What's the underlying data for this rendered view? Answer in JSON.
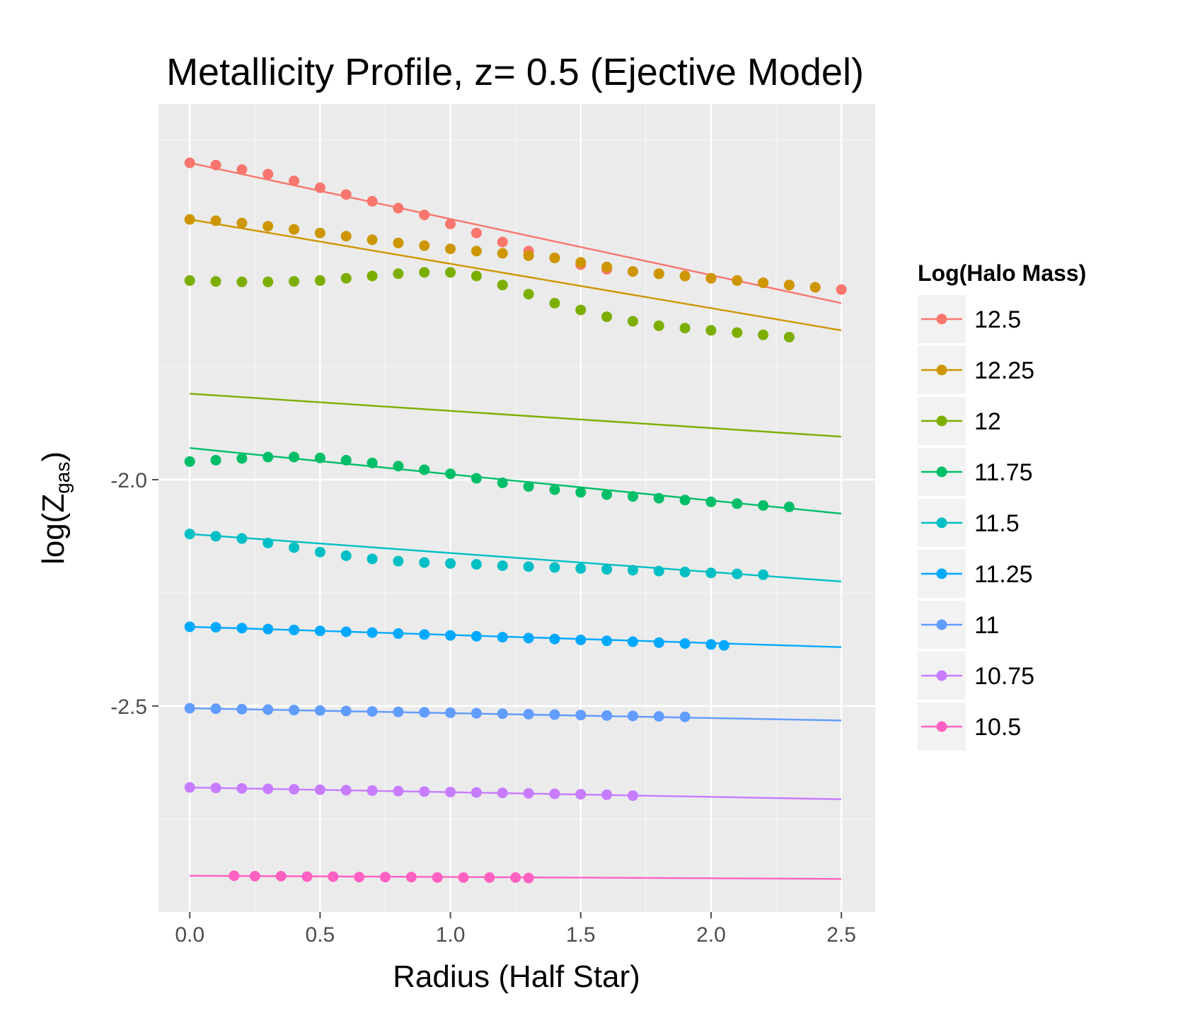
{
  "chart_data": {
    "type": "scatter",
    "title": "Metallicity Profile, z= 0.5 (Ejective Model)",
    "xlabel": "Radius (Half Star)",
    "ylabel": "log(Z_gas)",
    "ylabel_main": "log(Z",
    "ylabel_sub": "gas",
    "ylabel_end": ")",
    "xlim": [
      -0.12,
      2.63
    ],
    "ylim": [
      -2.955,
      -1.17
    ],
    "x_ticks": [
      0.0,
      0.5,
      1.0,
      1.5,
      2.0,
      2.5
    ],
    "x_tick_labels": [
      "0.0",
      "0.5",
      "1.0",
      "1.5",
      "2.0",
      "2.5"
    ],
    "y_ticks": [
      -2.0,
      -2.5
    ],
    "y_tick_labels": [
      "-2.0",
      "-2.5"
    ],
    "grid": true,
    "legend": {
      "title": "Log(Halo Mass)",
      "position": "right"
    },
    "series": [
      {
        "name": "12.5",
        "color": "#F8766D",
        "x": [
          0.0,
          0.1,
          0.2,
          0.3,
          0.4,
          0.5,
          0.6,
          0.7,
          0.8,
          0.9,
          1.0,
          1.1,
          1.2,
          1.3,
          1.4,
          1.5,
          1.6,
          1.7,
          1.8,
          1.9,
          2.0,
          2.1,
          2.2,
          2.3,
          2.4,
          2.5
        ],
        "y": [
          -1.3,
          -1.305,
          -1.315,
          -1.325,
          -1.34,
          -1.355,
          -1.37,
          -1.385,
          -1.4,
          -1.415,
          -1.435,
          -1.455,
          -1.475,
          -1.495,
          -1.51,
          -1.525,
          -1.535,
          -1.54,
          -1.545,
          -1.55,
          -1.555,
          -1.56,
          -1.565,
          -1.57,
          -1.575,
          -1.58
        ],
        "fit": [
          -1.3,
          -1.61
        ]
      },
      {
        "name": "12.25",
        "color": "#CD9600",
        "x": [
          0.0,
          0.1,
          0.2,
          0.3,
          0.4,
          0.5,
          0.6,
          0.7,
          0.8,
          0.9,
          1.0,
          1.1,
          1.2,
          1.3,
          1.4,
          1.5,
          1.6,
          1.7,
          1.8,
          1.9,
          2.0,
          2.1,
          2.2,
          2.3,
          2.4
        ],
        "y": [
          -1.425,
          -1.428,
          -1.433,
          -1.44,
          -1.447,
          -1.455,
          -1.462,
          -1.47,
          -1.477,
          -1.483,
          -1.49,
          -1.495,
          -1.5,
          -1.505,
          -1.51,
          -1.52,
          -1.53,
          -1.54,
          -1.545,
          -1.55,
          -1.555,
          -1.56,
          -1.565,
          -1.57,
          -1.575
        ],
        "fit": [
          -1.425,
          -1.67
        ]
      },
      {
        "name": "12",
        "color": "#7CAE00",
        "x": [
          0.0,
          0.1,
          0.2,
          0.3,
          0.4,
          0.5,
          0.6,
          0.7,
          0.8,
          0.9,
          1.0,
          1.1,
          1.2,
          1.3,
          1.4,
          1.5,
          1.6,
          1.7,
          1.8,
          1.9,
          2.0,
          2.1,
          2.2,
          2.3
        ],
        "y": [
          -1.56,
          -1.562,
          -1.563,
          -1.563,
          -1.562,
          -1.56,
          -1.555,
          -1.55,
          -1.545,
          -1.542,
          -1.542,
          -1.55,
          -1.57,
          -1.59,
          -1.61,
          -1.625,
          -1.64,
          -1.65,
          -1.66,
          -1.665,
          -1.67,
          -1.675,
          -1.68,
          -1.685
        ],
        "fit": [
          -1.81,
          -1.905
        ]
      },
      {
        "name": "11.75",
        "color": "#00BE67",
        "x": [
          0.0,
          0.1,
          0.2,
          0.3,
          0.4,
          0.5,
          0.6,
          0.7,
          0.8,
          0.9,
          1.0,
          1.1,
          1.2,
          1.3,
          1.4,
          1.5,
          1.6,
          1.7,
          1.8,
          1.9,
          2.0,
          2.1,
          2.2,
          2.3
        ],
        "y": [
          -1.96,
          -1.957,
          -1.953,
          -1.95,
          -1.95,
          -1.952,
          -1.957,
          -1.963,
          -1.97,
          -1.978,
          -1.987,
          -1.997,
          -2.007,
          -2.015,
          -2.022,
          -2.028,
          -2.033,
          -2.037,
          -2.041,
          -2.045,
          -2.049,
          -2.053,
          -2.057,
          -2.06
        ],
        "fit": [
          -1.93,
          -2.075
        ]
      },
      {
        "name": "11.5",
        "color": "#00BFC4",
        "x": [
          0.0,
          0.1,
          0.2,
          0.3,
          0.4,
          0.5,
          0.6,
          0.7,
          0.8,
          0.9,
          1.0,
          1.1,
          1.2,
          1.3,
          1.4,
          1.5,
          1.6,
          1.7,
          1.8,
          1.9,
          2.0,
          2.1,
          2.2
        ],
        "y": [
          -2.12,
          -2.125,
          -2.13,
          -2.14,
          -2.15,
          -2.16,
          -2.168,
          -2.175,
          -2.18,
          -2.183,
          -2.185,
          -2.187,
          -2.19,
          -2.192,
          -2.194,
          -2.196,
          -2.198,
          -2.2,
          -2.202,
          -2.204,
          -2.206,
          -2.208,
          -2.21
        ],
        "fit": [
          -2.12,
          -2.225
        ]
      },
      {
        "name": "11.25",
        "color": "#00A9FF",
        "x": [
          0.0,
          0.1,
          0.2,
          0.3,
          0.4,
          0.5,
          0.6,
          0.7,
          0.8,
          0.9,
          1.0,
          1.1,
          1.2,
          1.3,
          1.4,
          1.5,
          1.6,
          1.7,
          1.8,
          1.9,
          2.0,
          2.05
        ],
        "y": [
          -2.325,
          -2.326,
          -2.328,
          -2.33,
          -2.332,
          -2.334,
          -2.336,
          -2.338,
          -2.34,
          -2.342,
          -2.344,
          -2.346,
          -2.348,
          -2.35,
          -2.352,
          -2.354,
          -2.356,
          -2.358,
          -2.36,
          -2.362,
          -2.364,
          -2.366
        ],
        "fit": [
          -2.325,
          -2.37
        ]
      },
      {
        "name": "11",
        "color": "#619CFF",
        "x": [
          0.0,
          0.1,
          0.2,
          0.3,
          0.4,
          0.5,
          0.6,
          0.7,
          0.8,
          0.9,
          1.0,
          1.1,
          1.2,
          1.3,
          1.4,
          1.5,
          1.6,
          1.7,
          1.8,
          1.9
        ],
        "y": [
          -2.505,
          -2.506,
          -2.507,
          -2.508,
          -2.509,
          -2.51,
          -2.511,
          -2.512,
          -2.513,
          -2.514,
          -2.515,
          -2.516,
          -2.517,
          -2.518,
          -2.519,
          -2.52,
          -2.521,
          -2.522,
          -2.523,
          -2.524
        ],
        "fit": [
          -2.505,
          -2.532
        ]
      },
      {
        "name": "10.75",
        "color": "#C77CFF",
        "x": [
          0.0,
          0.1,
          0.2,
          0.3,
          0.4,
          0.5,
          0.6,
          0.7,
          0.8,
          0.9,
          1.0,
          1.1,
          1.2,
          1.3,
          1.4,
          1.5,
          1.6,
          1.7
        ],
        "y": [
          -2.68,
          -2.681,
          -2.682,
          -2.683,
          -2.684,
          -2.685,
          -2.686,
          -2.687,
          -2.688,
          -2.689,
          -2.69,
          -2.691,
          -2.692,
          -2.693,
          -2.694,
          -2.695,
          -2.696,
          -2.698
        ],
        "fit": [
          -2.68,
          -2.706
        ]
      },
      {
        "name": "10.5",
        "color": "#FF61C3",
        "x": [
          0.17,
          0.25,
          0.35,
          0.45,
          0.55,
          0.65,
          0.75,
          0.85,
          0.95,
          1.05,
          1.15,
          1.25,
          1.3
        ],
        "y": [
          -2.875,
          -2.876,
          -2.876,
          -2.877,
          -2.877,
          -2.878,
          -2.878,
          -2.878,
          -2.879,
          -2.879,
          -2.879,
          -2.879,
          -2.88
        ],
        "fit": [
          -2.875,
          -2.882
        ]
      }
    ]
  }
}
